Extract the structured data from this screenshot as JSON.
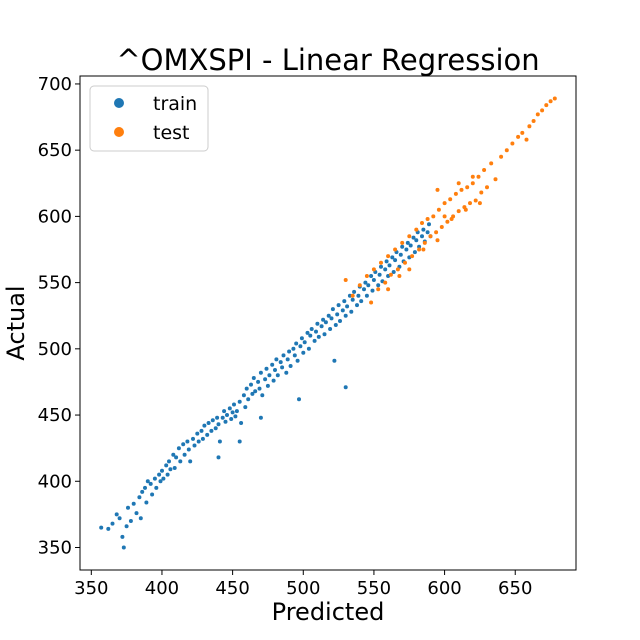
{
  "chart_data": {
    "type": "scatter",
    "title": "^OMXSPI - Linear Regression",
    "xlabel": "Predicted",
    "ylabel": "Actual",
    "xlim": [
      342,
      693
    ],
    "ylim": [
      333,
      706
    ],
    "xticks": [
      350,
      400,
      450,
      500,
      550,
      600,
      650
    ],
    "yticks": [
      350,
      400,
      450,
      500,
      550,
      600,
      650,
      700
    ],
    "grid": false,
    "legend_position": "top-left",
    "series": [
      {
        "name": "train",
        "color": "#1f77b4",
        "points": [
          [
            357,
            365
          ],
          [
            362,
            364
          ],
          [
            365,
            368
          ],
          [
            368,
            375
          ],
          [
            370,
            372
          ],
          [
            372,
            358
          ],
          [
            373,
            350
          ],
          [
            375,
            366
          ],
          [
            376,
            380
          ],
          [
            378,
            370
          ],
          [
            380,
            383
          ],
          [
            382,
            376
          ],
          [
            384,
            388
          ],
          [
            385,
            372
          ],
          [
            386,
            392
          ],
          [
            388,
            395
          ],
          [
            389,
            384
          ],
          [
            390,
            400
          ],
          [
            392,
            398
          ],
          [
            393,
            390
          ],
          [
            395,
            402
          ],
          [
            396,
            395
          ],
          [
            398,
            405
          ],
          [
            399,
            400
          ],
          [
            400,
            408
          ],
          [
            401,
            402
          ],
          [
            403,
            412
          ],
          [
            404,
            405
          ],
          [
            405,
            415
          ],
          [
            406,
            409
          ],
          [
            408,
            420
          ],
          [
            409,
            410
          ],
          [
            410,
            418
          ],
          [
            412,
            425
          ],
          [
            413,
            415
          ],
          [
            415,
            428
          ],
          [
            416,
            420
          ],
          [
            418,
            430
          ],
          [
            419,
            424
          ],
          [
            420,
            415
          ],
          [
            422,
            432
          ],
          [
            423,
            427
          ],
          [
            425,
            436
          ],
          [
            426,
            430
          ],
          [
            428,
            438
          ],
          [
            429,
            432
          ],
          [
            430,
            442
          ],
          [
            432,
            435
          ],
          [
            433,
            444
          ],
          [
            435,
            438
          ],
          [
            436,
            446
          ],
          [
            438,
            440
          ],
          [
            439,
            448
          ],
          [
            440,
            443
          ],
          [
            441,
            430
          ],
          [
            443,
            448
          ],
          [
            444,
            453
          ],
          [
            445,
            445
          ],
          [
            446,
            450
          ],
          [
            448,
            455
          ],
          [
            449,
            447
          ],
          [
            450,
            452
          ],
          [
            451,
            458
          ],
          [
            452,
            449
          ],
          [
            453,
            453
          ],
          [
            455,
            460
          ],
          [
            456,
            444
          ],
          [
            458,
            465
          ],
          [
            459,
            456
          ],
          [
            460,
            470
          ],
          [
            461,
            462
          ],
          [
            463,
            473
          ],
          [
            464,
            466
          ],
          [
            465,
            478
          ],
          [
            466,
            468
          ],
          [
            468,
            475
          ],
          [
            469,
            470
          ],
          [
            470,
            482
          ],
          [
            471,
            465
          ],
          [
            473,
            477
          ],
          [
            474,
            485
          ],
          [
            475,
            472
          ],
          [
            476,
            480
          ],
          [
            478,
            488
          ],
          [
            479,
            476
          ],
          [
            480,
            484
          ],
          [
            481,
            492
          ],
          [
            482,
            480
          ],
          [
            484,
            490
          ],
          [
            485,
            486
          ],
          [
            486,
            495
          ],
          [
            488,
            482
          ],
          [
            489,
            492
          ],
          [
            490,
            498
          ],
          [
            491,
            487
          ],
          [
            493,
            500
          ],
          [
            494,
            495
          ],
          [
            495,
            504
          ],
          [
            496,
            491
          ],
          [
            498,
            502
          ],
          [
            499,
            508
          ],
          [
            500,
            497
          ],
          [
            501,
            505
          ],
          [
            503,
            512
          ],
          [
            504,
            500
          ],
          [
            505,
            510
          ],
          [
            506,
            515
          ],
          [
            508,
            506
          ],
          [
            509,
            513
          ],
          [
            510,
            519
          ],
          [
            511,
            509
          ],
          [
            513,
            517
          ],
          [
            514,
            522
          ],
          [
            515,
            511
          ],
          [
            516,
            520
          ],
          [
            518,
            525
          ],
          [
            519,
            515
          ],
          [
            520,
            523
          ],
          [
            521,
            530
          ],
          [
            523,
            518
          ],
          [
            524,
            526
          ],
          [
            525,
            533
          ],
          [
            526,
            521
          ],
          [
            528,
            529
          ],
          [
            529,
            536
          ],
          [
            530,
            525
          ],
          [
            531,
            532
          ],
          [
            533,
            540
          ],
          [
            534,
            528
          ],
          [
            535,
            537
          ],
          [
            536,
            543
          ],
          [
            538,
            533
          ],
          [
            539,
            540
          ],
          [
            540,
            547
          ],
          [
            541,
            536
          ],
          [
            543,
            545
          ],
          [
            544,
            550
          ],
          [
            545,
            540
          ],
          [
            546,
            548
          ],
          [
            548,
            555
          ],
          [
            549,
            544
          ],
          [
            550,
            552
          ],
          [
            551,
            558
          ],
          [
            553,
            548
          ],
          [
            554,
            556
          ],
          [
            555,
            562
          ],
          [
            556,
            551
          ],
          [
            558,
            560
          ],
          [
            559,
            566
          ],
          [
            560,
            555
          ],
          [
            561,
            563
          ],
          [
            563,
            569
          ],
          [
            564,
            558
          ],
          [
            565,
            567
          ],
          [
            566,
            573
          ],
          [
            568,
            562
          ],
          [
            569,
            571
          ],
          [
            570,
            577
          ],
          [
            571,
            566
          ],
          [
            573,
            575
          ],
          [
            574,
            580
          ],
          [
            575,
            569
          ],
          [
            576,
            578
          ],
          [
            578,
            584
          ],
          [
            579,
            573
          ],
          [
            580,
            582
          ],
          [
            581,
            588
          ],
          [
            582,
            577
          ],
          [
            584,
            585
          ],
          [
            585,
            590
          ],
          [
            586,
            581
          ],
          [
            588,
            588
          ],
          [
            589,
            594
          ],
          [
            590,
            585
          ],
          [
            522,
            491
          ],
          [
            530,
            471
          ],
          [
            497,
            462
          ],
          [
            470,
            448
          ],
          [
            455,
            430
          ],
          [
            440,
            418
          ]
        ]
      },
      {
        "name": "test",
        "color": "#ff7f0e",
        "points": [
          [
            530,
            552
          ],
          [
            535,
            540
          ],
          [
            540,
            548
          ],
          [
            545,
            555
          ],
          [
            548,
            535
          ],
          [
            550,
            560
          ],
          [
            553,
            545
          ],
          [
            555,
            565
          ],
          [
            558,
            550
          ],
          [
            560,
            570
          ],
          [
            562,
            556
          ],
          [
            565,
            575
          ],
          [
            567,
            560
          ],
          [
            570,
            580
          ],
          [
            572,
            565
          ],
          [
            575,
            585
          ],
          [
            577,
            570
          ],
          [
            580,
            590
          ],
          [
            582,
            575
          ],
          [
            584,
            595
          ],
          [
            586,
            580
          ],
          [
            588,
            598
          ],
          [
            590,
            585
          ],
          [
            592,
            600
          ],
          [
            594,
            588
          ],
          [
            596,
            605
          ],
          [
            598,
            592
          ],
          [
            600,
            610
          ],
          [
            602,
            596
          ],
          [
            604,
            613
          ],
          [
            606,
            600
          ],
          [
            608,
            617
          ],
          [
            610,
            604
          ],
          [
            612,
            620
          ],
          [
            614,
            607
          ],
          [
            616,
            622
          ],
          [
            618,
            610
          ],
          [
            620,
            625
          ],
          [
            622,
            612
          ],
          [
            624,
            630
          ],
          [
            626,
            618
          ],
          [
            628,
            635
          ],
          [
            630,
            622
          ],
          [
            633,
            640
          ],
          [
            636,
            628
          ],
          [
            640,
            645
          ],
          [
            644,
            650
          ],
          [
            648,
            655
          ],
          [
            652,
            660
          ],
          [
            655,
            663
          ],
          [
            658,
            658
          ],
          [
            660,
            668
          ],
          [
            663,
            672
          ],
          [
            666,
            677
          ],
          [
            669,
            680
          ],
          [
            672,
            684
          ],
          [
            675,
            687
          ],
          [
            678,
            689
          ],
          [
            560,
            545
          ],
          [
            568,
            555
          ],
          [
            575,
            560
          ],
          [
            585,
            575
          ],
          [
            595,
            582
          ],
          [
            605,
            598
          ],
          [
            615,
            605
          ],
          [
            625,
            610
          ],
          [
            595,
            620
          ],
          [
            610,
            625
          ],
          [
            620,
            630
          ],
          [
            600,
            600
          ]
        ]
      }
    ]
  }
}
